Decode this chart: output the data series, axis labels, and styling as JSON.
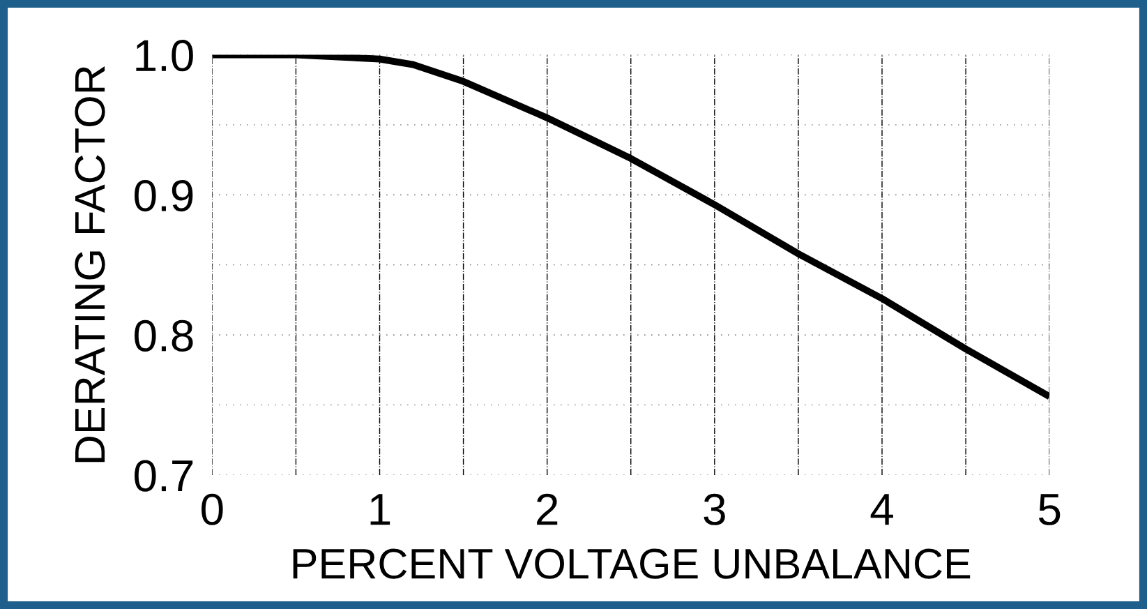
{
  "chart_data": {
    "type": "line",
    "xlabel": "PERCENT VOLTAGE UNBALANCE",
    "ylabel": "DERATING FACTOR",
    "x": [
      0,
      0.5,
      1,
      1.2,
      1.5,
      2,
      2.5,
      3,
      3.5,
      4,
      4.5,
      5
    ],
    "series": [
      {
        "color": "#000000",
        "values": [
          1.0,
          1.0,
          0.997,
          0.993,
          0.981,
          0.955,
          0.926,
          0.893,
          0.858,
          0.826,
          0.79,
          0.756
        ]
      }
    ],
    "xlim": [
      0,
      5
    ],
    "ylim": [
      0.7,
      1.0
    ],
    "xticks": [
      0,
      {
        "value": 0.5,
        "label": null
      },
      1,
      {
        "value": 1.5,
        "label": null
      },
      2,
      {
        "value": 2.5,
        "label": null
      },
      3,
      {
        "value": 3.5,
        "label": null
      },
      4,
      {
        "value": 4.5,
        "label": null
      },
      5
    ],
    "yticks": [
      {
        "value": 0.7,
        "label": "0.7"
      },
      {
        "value": 0.75,
        "label": null
      },
      {
        "value": 0.8,
        "label": "0.8"
      },
      {
        "value": 0.85,
        "label": null
      },
      {
        "value": 0.9,
        "label": "0.9"
      },
      {
        "value": 0.95,
        "label": null
      },
      {
        "value": 1.0,
        "label": "1.0"
      }
    ],
    "grid": true,
    "marker": "none",
    "line_style": "solid"
  }
}
